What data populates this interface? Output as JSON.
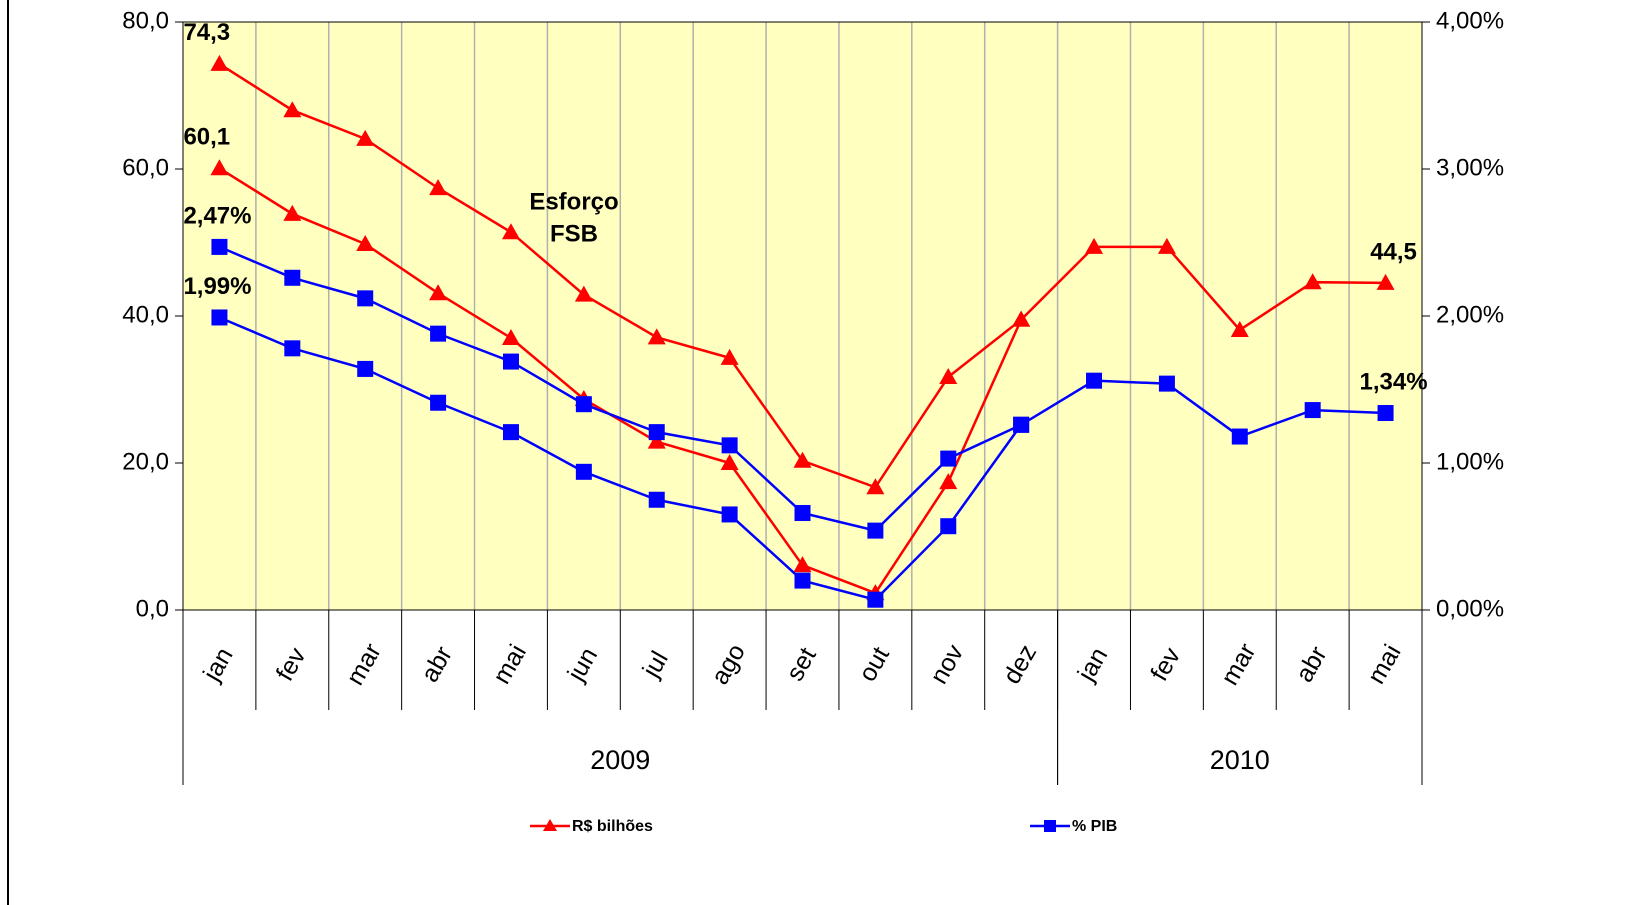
{
  "chart_data": {
    "type": "line",
    "categories": [
      "jan",
      "fev",
      "mar",
      "abr",
      "mai",
      "jun",
      "jul",
      "ago",
      "set",
      "out",
      "nov",
      "dez",
      "jan",
      "fev",
      "mar",
      "abr",
      "mai"
    ],
    "groups": [
      {
        "label": "2009",
        "count": 12
      },
      {
        "label": "2010",
        "count": 5
      }
    ],
    "ylim": [
      0,
      80
    ],
    "yticks": [
      {
        "value": 0,
        "label": "0,0"
      },
      {
        "value": 20,
        "label": "20,0"
      },
      {
        "value": 40,
        "label": "40,0"
      },
      {
        "value": 60,
        "label": "60,0"
      },
      {
        "value": 80,
        "label": "80,0"
      }
    ],
    "y2lim": [
      0,
      4
    ],
    "y2ticks": [
      {
        "value": 0,
        "label": "0,00%"
      },
      {
        "value": 1,
        "label": "1,00%"
      },
      {
        "value": 2,
        "label": "2,00%"
      },
      {
        "value": 3,
        "label": "3,00%"
      },
      {
        "value": 4,
        "label": "4,00%"
      }
    ],
    "annotation": [
      "Esforço",
      "FSB"
    ],
    "series": [
      {
        "name": "R$ bilhões",
        "color": "#ff0000",
        "marker": "triangle",
        "values": [
          74.3,
          68.0,
          64.1,
          57.4,
          51.4,
          42.9,
          37.1,
          34.3,
          20.3,
          16.7,
          31.7,
          39.5,
          49.4,
          49.4,
          38.1,
          44.6,
          44.5
        ],
        "value_labels": [
          "74,3",
          null,
          null,
          null,
          null,
          null,
          null,
          null,
          null,
          null,
          null,
          null,
          null,
          null,
          null,
          null,
          "44,5"
        ]
      },
      {
        "color": "#ff0000",
        "marker": "triangle",
        "values": [
          60.1,
          53.9,
          49.8,
          43.1,
          37.0,
          28.7,
          22.9,
          20.0,
          6.1,
          2.3,
          17.4,
          39.5,
          null,
          null,
          null,
          null,
          null
        ],
        "value_labels": [
          "60,1",
          null,
          null,
          null,
          null,
          null,
          null,
          null,
          null,
          null,
          null,
          null,
          null,
          null,
          null,
          null,
          null
        ]
      },
      {
        "name": "% PIB",
        "color": "#0000ff",
        "marker": "square",
        "axis": "y2",
        "values": [
          2.47,
          2.26,
          2.12,
          1.88,
          1.69,
          1.4,
          1.21,
          1.12,
          0.66,
          0.54,
          1.03,
          1.26,
          1.56,
          1.54,
          1.18,
          1.36,
          1.34
        ],
        "value_labels": [
          "2,47%",
          null,
          null,
          null,
          null,
          null,
          null,
          null,
          null,
          null,
          null,
          null,
          null,
          null,
          null,
          null,
          "1,34%"
        ]
      },
      {
        "color": "#0000ff",
        "marker": "square",
        "axis": "y2",
        "values": [
          1.99,
          1.78,
          1.64,
          1.41,
          1.21,
          0.94,
          0.75,
          0.65,
          0.2,
          0.07,
          0.57,
          1.26,
          null,
          null,
          null,
          null,
          null
        ],
        "value_labels": [
          "1,99%",
          null,
          null,
          null,
          null,
          null,
          null,
          null,
          null,
          null,
          null,
          null,
          null,
          null,
          null,
          null,
          null
        ]
      }
    ]
  }
}
